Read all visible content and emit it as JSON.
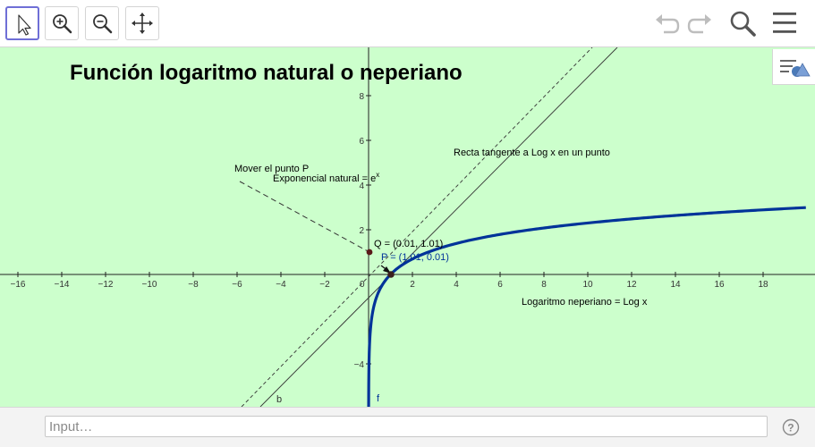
{
  "toolbar": {
    "tools": [
      {
        "name": "move-tool",
        "icon": "cursor-icon",
        "active": true
      },
      {
        "name": "zoom-in-tool",
        "icon": "zoom-in-icon",
        "active": false
      },
      {
        "name": "zoom-out-tool",
        "icon": "zoom-out-icon",
        "active": false
      },
      {
        "name": "move-view-tool",
        "icon": "move-arrows-icon",
        "active": false
      }
    ],
    "right_icons": [
      "undo-icon",
      "redo-icon",
      "search-icon",
      "menu-icon"
    ]
  },
  "graphics": {
    "background_color": "#ccffcc",
    "title": "Función logaritmo natural o neperiano",
    "labels": {
      "move_point": "Mover el punto P",
      "exp_label": "Exponencial natural = e",
      "exp_sup": "x",
      "tangent_label": "Recta tangente a Log x en un punto",
      "log_label": "Logaritmo neperiano = Log x",
      "point_q": "Q = (0.01, 1.01)",
      "point_p": "P = (1.01, 0.01)",
      "line_b": "b",
      "curve_f": "f",
      "origin": "0"
    },
    "x_ticks": [
      "−16",
      "−14",
      "−12",
      "−10",
      "−8",
      "−6",
      "−4",
      "−2",
      "2",
      "4",
      "6",
      "8",
      "10",
      "12",
      "14",
      "16",
      "18"
    ],
    "y_ticks": [
      "8",
      "6",
      "4",
      "2",
      "−4"
    ],
    "x_tick_values": [
      -16,
      -14,
      -12,
      -10,
      -8,
      -6,
      -4,
      -2,
      2,
      4,
      6,
      8,
      10,
      12,
      14,
      16,
      18
    ],
    "y_tick_values": [
      8,
      6,
      4,
      2,
      -4
    ],
    "curve_color": "#003399",
    "point_color": "#5a1a1a"
  },
  "input_bar": {
    "placeholder": "Input…",
    "help_icon": "help-icon"
  }
}
